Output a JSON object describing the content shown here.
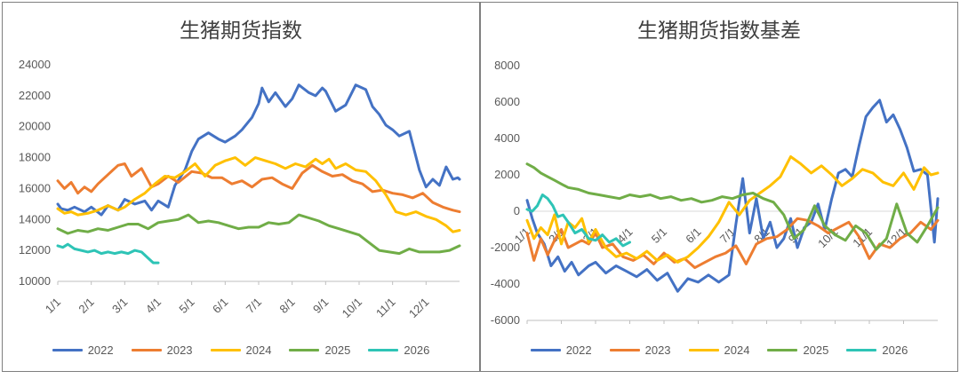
{
  "chart_data": [
    {
      "type": "line",
      "title": "生猪期货指数",
      "ylim": [
        10000,
        24000
      ],
      "yticks": [
        10000,
        12000,
        14000,
        16000,
        18000,
        20000,
        22000,
        24000
      ],
      "ytick_labels": [
        "10000",
        "12000",
        "14000",
        "16000",
        "18000",
        "20000",
        "22000",
        "24000"
      ],
      "x_labels": [
        "1/1",
        "2/1",
        "3/1",
        "4/1",
        "5/1",
        "6/1",
        "7/1",
        "8/1",
        "9/1",
        "10/1",
        "11/1",
        "12/1"
      ],
      "x_label_positions": [
        0,
        1,
        2,
        3,
        4,
        5,
        6,
        7,
        8,
        9,
        10,
        11
      ],
      "xlim": [
        0,
        12
      ],
      "legend_position": "bottom",
      "series": [
        {
          "name": "2022",
          "color": "#4472C4",
          "x": [
            0.0,
            0.1,
            0.3,
            0.5,
            0.8,
            1.0,
            1.3,
            1.5,
            1.8,
            2.0,
            2.3,
            2.6,
            2.8,
            3.0,
            3.3,
            3.5,
            3.8,
            4.0,
            4.2,
            4.5,
            4.8,
            5.0,
            5.3,
            5.5,
            5.8,
            6.0,
            6.1,
            6.3,
            6.5,
            6.8,
            7.0,
            7.2,
            7.5,
            7.7,
            7.9,
            8.0,
            8.3,
            8.6,
            8.9,
            9.2,
            9.4,
            9.6,
            9.8,
            10.0,
            10.2,
            10.5,
            10.8,
            11.0,
            11.2,
            11.4,
            11.6,
            11.8,
            11.95,
            12.0
          ],
          "y": [
            15000,
            14700,
            14600,
            14800,
            14500,
            14800,
            14300,
            14900,
            14600,
            15300,
            15000,
            15200,
            14600,
            15200,
            14800,
            16200,
            17200,
            18400,
            19200,
            19600,
            19200,
            19000,
            19400,
            19800,
            20600,
            21500,
            22500,
            21600,
            22200,
            21300,
            21800,
            22700,
            22200,
            22000,
            22500,
            22300,
            21000,
            21400,
            22700,
            22400,
            21300,
            20800,
            20100,
            19800,
            19400,
            19700,
            17200,
            16100,
            16600,
            16200,
            17400,
            16600,
            16700,
            16600
          ]
        },
        {
          "name": "2023",
          "color": "#ED7D31",
          "x": [
            0.0,
            0.2,
            0.4,
            0.6,
            0.8,
            1.0,
            1.2,
            1.5,
            1.8,
            2.0,
            2.2,
            2.5,
            2.8,
            3.0,
            3.3,
            3.6,
            4.0,
            4.3,
            4.6,
            4.9,
            5.2,
            5.5,
            5.8,
            6.1,
            6.4,
            6.7,
            7.0,
            7.3,
            7.6,
            7.9,
            8.2,
            8.5,
            8.8,
            9.1,
            9.4,
            9.7,
            10.0,
            10.3,
            10.6,
            10.9,
            11.2,
            11.5,
            11.8,
            12.0
          ],
          "y": [
            16500,
            16000,
            16400,
            15700,
            16100,
            15800,
            16300,
            16900,
            17500,
            17600,
            16800,
            17300,
            16100,
            16300,
            16800,
            16400,
            17100,
            17000,
            16700,
            16700,
            16300,
            16500,
            16100,
            16600,
            16700,
            16300,
            16000,
            17000,
            17500,
            17100,
            16800,
            16900,
            16500,
            16300,
            15800,
            15900,
            15700,
            15600,
            15400,
            15700,
            15100,
            14800,
            14600,
            14500
          ]
        },
        {
          "name": "2024",
          "color": "#FFC000",
          "x": [
            0.0,
            0.2,
            0.4,
            0.6,
            0.9,
            1.2,
            1.5,
            1.8,
            2.0,
            2.3,
            2.6,
            2.9,
            3.2,
            3.5,
            3.8,
            4.1,
            4.4,
            4.7,
            5.0,
            5.3,
            5.6,
            5.9,
            6.2,
            6.5,
            6.8,
            7.1,
            7.4,
            7.7,
            7.9,
            8.1,
            8.3,
            8.6,
            8.9,
            9.2,
            9.5,
            9.8,
            10.1,
            10.4,
            10.7,
            11.0,
            11.3,
            11.6,
            11.8,
            12.0
          ],
          "y": [
            14700,
            14400,
            14500,
            14300,
            14400,
            14600,
            14900,
            14600,
            14800,
            15300,
            15700,
            16300,
            16800,
            16700,
            17100,
            17600,
            16800,
            17500,
            17800,
            18000,
            17500,
            18000,
            17800,
            17600,
            17300,
            17600,
            17400,
            17900,
            17600,
            17900,
            17300,
            17600,
            17200,
            17100,
            16500,
            15600,
            14500,
            14300,
            14500,
            14200,
            14000,
            13600,
            13200,
            13300
          ]
        },
        {
          "name": "2025",
          "color": "#70AD47",
          "x": [
            0.0,
            0.3,
            0.6,
            0.9,
            1.2,
            1.5,
            1.8,
            2.1,
            2.4,
            2.7,
            3.0,
            3.3,
            3.6,
            3.9,
            4.2,
            4.5,
            4.8,
            5.1,
            5.4,
            5.7,
            6.0,
            6.3,
            6.6,
            6.9,
            7.2,
            7.5,
            7.8,
            8.1,
            8.4,
            8.7,
            9.0,
            9.3,
            9.6,
            9.9,
            10.2,
            10.5,
            10.8,
            11.1,
            11.4,
            11.7,
            12.0
          ],
          "y": [
            13400,
            13100,
            13300,
            13200,
            13400,
            13300,
            13500,
            13700,
            13700,
            13400,
            13800,
            13900,
            14000,
            14300,
            13800,
            13900,
            13800,
            13600,
            13400,
            13500,
            13500,
            13800,
            13700,
            13800,
            14300,
            14100,
            13900,
            13600,
            13400,
            13200,
            13000,
            12500,
            12000,
            11900,
            11800,
            12100,
            11900,
            11900,
            11900,
            12000,
            12300
          ]
        },
        {
          "name": "2026",
          "color": "#2EC4B6",
          "x": [
            0.0,
            0.15,
            0.3,
            0.5,
            0.7,
            0.9,
            1.1,
            1.3,
            1.5,
            1.7,
            1.9,
            2.1,
            2.3,
            2.5,
            2.7,
            2.85,
            3.0
          ],
          "y": [
            12300,
            12200,
            12400,
            12100,
            12000,
            11900,
            12000,
            11800,
            11900,
            11800,
            11900,
            11800,
            12000,
            11900,
            11500,
            11200,
            11200
          ]
        }
      ]
    },
    {
      "type": "line",
      "title": "生猪期货指数基差",
      "ylim": [
        -6000,
        8000
      ],
      "yticks": [
        -6000,
        -4000,
        -2000,
        0,
        2000,
        4000,
        6000,
        8000
      ],
      "ytick_labels": [
        "-6000",
        "-4000",
        "-2000",
        "0",
        "2000",
        "4000",
        "6000",
        "8000"
      ],
      "x_labels": [
        "1/1",
        "2/1",
        "3/1",
        "4/1",
        "5/1",
        "6/1",
        "7/1",
        "8/1",
        "9/1",
        "10/1",
        "11/1",
        "12/1"
      ],
      "x_label_positions": [
        0,
        1,
        2,
        3,
        4,
        5,
        6,
        7,
        8,
        9,
        10,
        11
      ],
      "xlim": [
        0,
        12
      ],
      "legend_position": "bottom",
      "series": [
        {
          "name": "2022",
          "color": "#4472C4",
          "x": [
            0.0,
            0.15,
            0.3,
            0.5,
            0.7,
            0.9,
            1.1,
            1.3,
            1.5,
            1.8,
            2.0,
            2.3,
            2.6,
            2.9,
            3.2,
            3.5,
            3.8,
            4.1,
            4.4,
            4.7,
            5.0,
            5.3,
            5.6,
            5.9,
            6.1,
            6.3,
            6.5,
            6.7,
            6.9,
            7.1,
            7.3,
            7.5,
            7.7,
            7.9,
            8.1,
            8.3,
            8.5,
            8.7,
            8.9,
            9.1,
            9.3,
            9.5,
            9.7,
            9.9,
            10.1,
            10.3,
            10.5,
            10.7,
            10.9,
            11.1,
            11.3,
            11.5,
            11.7,
            11.9,
            12.0
          ],
          "y": [
            600,
            -400,
            -1200,
            -1800,
            -3000,
            -2500,
            -3300,
            -2800,
            -3500,
            -3000,
            -2800,
            -3400,
            -3000,
            -3300,
            -3600,
            -3200,
            -3800,
            -3400,
            -4400,
            -3700,
            -3900,
            -3500,
            -3900,
            -3500,
            -700,
            1800,
            -1200,
            700,
            -1500,
            -600,
            -2000,
            -1500,
            -400,
            -2000,
            -900,
            -600,
            400,
            -1000,
            700,
            2100,
            2300,
            1900,
            3600,
            5200,
            5700,
            6100,
            4900,
            5300,
            4500,
            3500,
            2200,
            2300,
            2000,
            -1700,
            700
          ]
        },
        {
          "name": "2023",
          "color": "#ED7D31",
          "x": [
            0.0,
            0.2,
            0.4,
            0.6,
            0.8,
            1.0,
            1.2,
            1.4,
            1.6,
            1.8,
            2.0,
            2.2,
            2.5,
            2.8,
            3.1,
            3.4,
            3.7,
            4.0,
            4.3,
            4.6,
            4.9,
            5.2,
            5.5,
            5.8,
            6.1,
            6.4,
            6.7,
            7.0,
            7.3,
            7.6,
            7.9,
            8.2,
            8.5,
            8.8,
            9.1,
            9.4,
            9.7,
            10.0,
            10.3,
            10.6,
            10.9,
            11.2,
            11.5,
            11.8,
            12.0
          ],
          "y": [
            -1200,
            -2700,
            -1500,
            -2400,
            -1600,
            -1000,
            -2000,
            -1800,
            -1600,
            -1800,
            -1200,
            -2000,
            -1800,
            -2500,
            -2700,
            -2400,
            -2900,
            -2300,
            -2800,
            -2600,
            -3100,
            -2800,
            -2500,
            -2300,
            -1900,
            -2900,
            -1800,
            -1500,
            -1400,
            -1000,
            -400,
            -500,
            -800,
            -1200,
            -900,
            -600,
            -1400,
            -2600,
            -1800,
            -2000,
            -1500,
            -1200,
            -600,
            -1000,
            -500
          ]
        },
        {
          "name": "2024",
          "color": "#FFC000",
          "x": [
            0.0,
            0.2,
            0.4,
            0.6,
            0.8,
            1.0,
            1.2,
            1.4,
            1.6,
            1.8,
            2.0,
            2.3,
            2.6,
            2.9,
            3.2,
            3.5,
            3.8,
            4.1,
            4.4,
            4.7,
            5.0,
            5.3,
            5.6,
            5.9,
            6.2,
            6.5,
            6.8,
            7.1,
            7.4,
            7.7,
            8.0,
            8.3,
            8.6,
            8.9,
            9.2,
            9.5,
            9.8,
            10.1,
            10.4,
            10.7,
            11.0,
            11.3,
            11.6,
            11.8,
            12.0
          ],
          "y": [
            -500,
            -1500,
            -900,
            -1300,
            -200,
            -1800,
            -600,
            -900,
            -400,
            -1700,
            -1000,
            -2000,
            -2500,
            -2300,
            -2600,
            -2200,
            -2700,
            -2400,
            -2800,
            -2500,
            -2000,
            -1400,
            -600,
            500,
            -200,
            600,
            1000,
            1400,
            1900,
            3000,
            2600,
            2100,
            2500,
            2000,
            1400,
            1800,
            2300,
            2100,
            1600,
            1400,
            2100,
            1200,
            2400,
            2000,
            2100
          ]
        },
        {
          "name": "2025",
          "color": "#70AD47",
          "x": [
            0.0,
            0.2,
            0.4,
            0.6,
            0.8,
            1.0,
            1.2,
            1.5,
            1.8,
            2.1,
            2.4,
            2.7,
            3.0,
            3.3,
            3.6,
            3.9,
            4.2,
            4.5,
            4.8,
            5.1,
            5.4,
            5.7,
            6.0,
            6.3,
            6.6,
            6.9,
            7.2,
            7.5,
            7.8,
            8.1,
            8.4,
            8.7,
            9.0,
            9.3,
            9.6,
            9.9,
            10.2,
            10.5,
            10.8,
            11.1,
            11.4,
            11.7,
            12.0
          ],
          "y": [
            2600,
            2400,
            2100,
            1900,
            1700,
            1500,
            1300,
            1200,
            1000,
            900,
            800,
            700,
            900,
            800,
            900,
            700,
            800,
            600,
            700,
            500,
            600,
            800,
            700,
            900,
            1000,
            700,
            500,
            -200,
            -1500,
            -1000,
            300,
            -800,
            -1300,
            -1600,
            -800,
            -1200,
            -2100,
            -1500,
            400,
            -1200,
            -1700,
            -800,
            200
          ]
        },
        {
          "name": "2026",
          "color": "#2EC4B6",
          "x": [
            0.0,
            0.15,
            0.3,
            0.45,
            0.6,
            0.75,
            0.9,
            1.05,
            1.2,
            1.4,
            1.6,
            1.8,
            2.0,
            2.2,
            2.4,
            2.6,
            2.8,
            3.0
          ],
          "y": [
            100,
            0,
            300,
            900,
            700,
            300,
            -300,
            -200,
            -600,
            -1200,
            -1000,
            -1500,
            -1600,
            -1300,
            -1700,
            -1500,
            -1900,
            -1700
          ]
        }
      ]
    }
  ]
}
